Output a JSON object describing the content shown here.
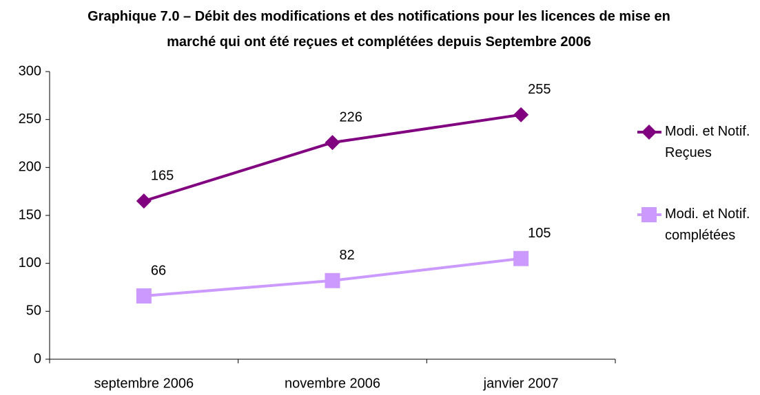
{
  "chart_data": {
    "type": "line",
    "title": "Graphique 7.0 – Débit des modifications et des notifications pour les licences de mise en marché qui ont été reçues et complétées depuis Septembre 2006",
    "categories": [
      "septembre 2006",
      "novembre 2006",
      "janvier 2007"
    ],
    "series": [
      {
        "name": "Modi. et Notif. Reçues",
        "color": "#800080",
        "marker": "diamond",
        "values": [
          165,
          226,
          255
        ]
      },
      {
        "name": "Modi. et Notif. complétées",
        "color": "#cc99ff",
        "marker": "square",
        "values": [
          66,
          82,
          105
        ]
      }
    ],
    "ylim": [
      0,
      300
    ],
    "yticks": [
      0,
      50,
      100,
      150,
      200,
      250,
      300
    ],
    "grid": false,
    "legend": "right"
  }
}
